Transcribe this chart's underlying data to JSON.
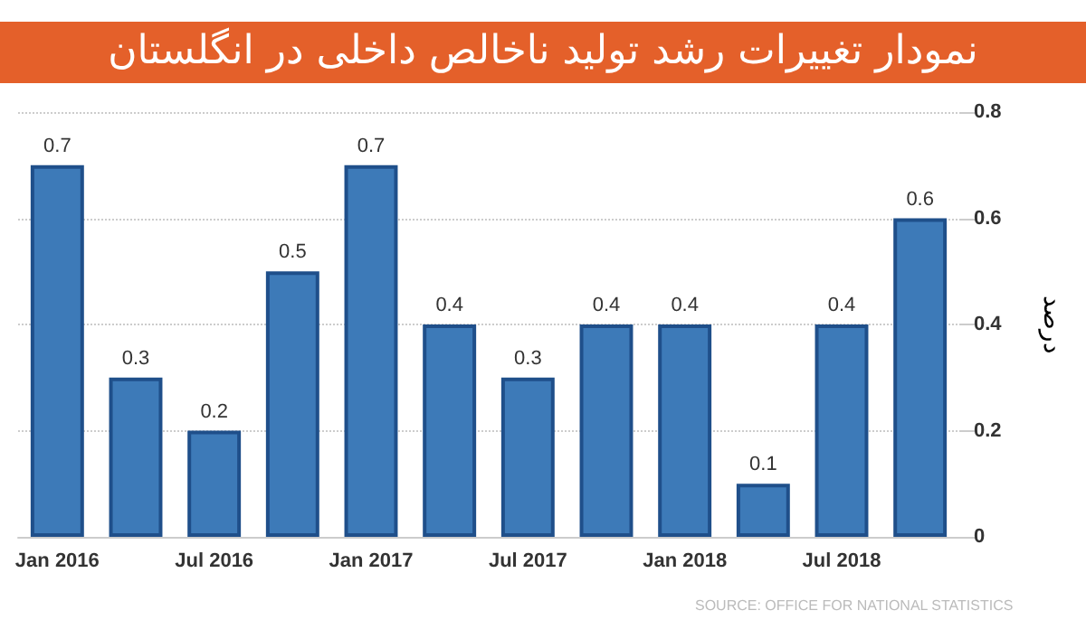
{
  "chart_data": {
    "type": "bar",
    "title": "نمودار تغییرات رشد تولید ناخالص داخلی در انگلستان",
    "ylabel": "درصد",
    "categories": [
      "Jan 2016",
      null,
      "Jul 2016",
      null,
      "Jan 2017",
      null,
      "Jul 2017",
      null,
      "Jan 2018",
      null,
      "Jul 2018",
      null
    ],
    "values": [
      0.7,
      0.3,
      0.2,
      0.5,
      0.7,
      0.4,
      0.3,
      0.4,
      0.4,
      0.1,
      0.4,
      0.6
    ],
    "color": "#3d7ab8",
    "ylim": [
      0,
      0.8
    ],
    "yticks": [
      0,
      0.2,
      0.4,
      0.6,
      0.8
    ],
    "grid": "y",
    "data_labels": true,
    "annotations": [
      "SOURCE: OFFICE FOR NATIONAL STATISTICS"
    ]
  }
}
